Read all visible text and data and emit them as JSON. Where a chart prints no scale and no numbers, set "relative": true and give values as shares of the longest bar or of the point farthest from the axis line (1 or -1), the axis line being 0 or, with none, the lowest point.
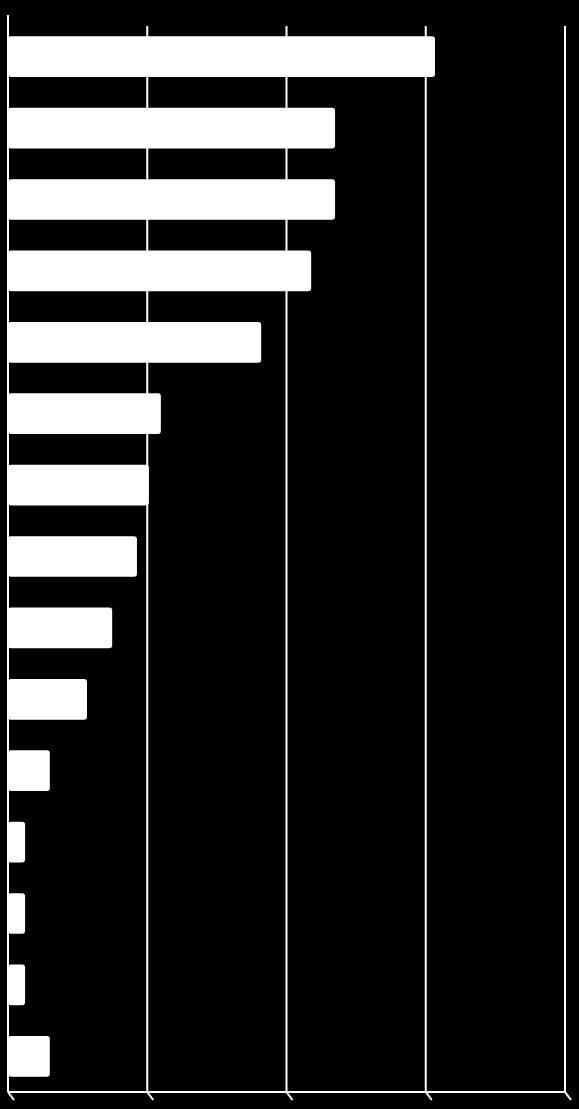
{
  "chart_data": {
    "type": "bar",
    "orientation": "horizontal",
    "relative": true,
    "categories": [
      null,
      null,
      null,
      null,
      null,
      null,
      null,
      null,
      null,
      null,
      null,
      null,
      null,
      null,
      null
    ],
    "values": [
      1,
      0.766,
      0.766,
      0.71,
      0.593,
      0.358,
      0.33,
      0.302,
      0.244,
      0.185,
      0.098,
      0.04,
      0.04,
      0.04,
      0.098
    ],
    "color": "#ffffff",
    "grid": true
  }
}
